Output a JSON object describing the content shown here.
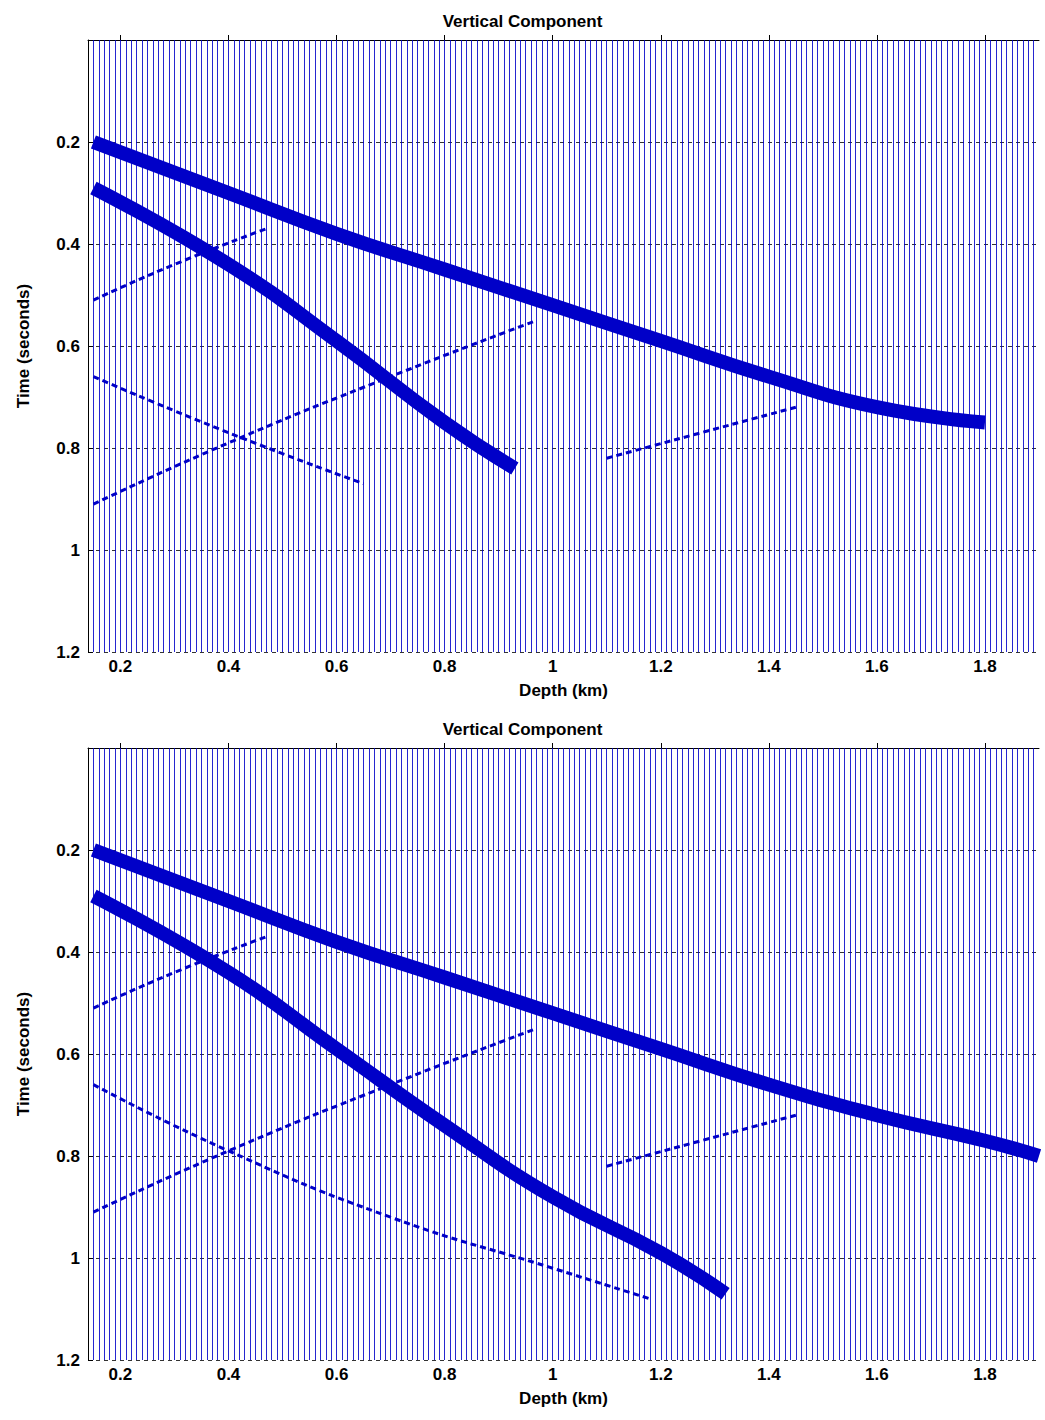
{
  "chart_data": [
    {
      "type": "line",
      "title": "Vertical Component",
      "x_label": "Depth (km)",
      "y_label": "Time (seconds)",
      "xlim": [
        0.14,
        1.9
      ],
      "xticks": [
        0.2,
        0.4,
        0.6,
        0.8,
        1,
        1.2,
        1.4,
        1.6,
        1.8
      ],
      "ylim": [
        0,
        1.2
      ],
      "yticks": [
        0.2,
        0.4,
        0.6,
        0.8,
        1,
        1.2
      ],
      "grid": true,
      "traces": [
        0.15,
        0.16,
        0.17,
        0.18,
        0.19,
        0.2,
        0.21,
        0.22,
        0.23,
        0.24,
        0.25,
        0.26,
        0.27,
        0.28,
        0.29,
        0.3,
        0.31,
        0.32,
        0.33,
        0.34,
        0.35,
        0.36,
        0.37,
        0.38,
        0.39,
        0.4,
        0.41,
        0.42,
        0.43,
        0.44,
        0.45,
        0.46,
        0.47,
        0.48,
        0.49,
        0.5,
        0.51,
        0.52,
        0.53,
        0.54,
        0.55,
        0.56,
        0.57,
        0.58,
        0.59,
        0.6,
        0.61,
        0.62,
        0.63,
        0.64,
        0.65,
        0.66,
        0.67,
        0.68,
        0.69,
        0.7,
        0.71,
        0.72,
        0.73,
        0.74,
        0.75,
        0.76,
        0.77,
        0.78,
        0.79,
        0.8,
        0.81,
        0.82,
        0.83,
        0.84,
        0.85,
        0.86,
        0.87,
        0.88,
        0.89,
        0.9,
        0.91,
        0.92,
        0.93,
        0.94,
        0.95,
        0.96,
        0.97,
        0.98,
        0.99,
        1,
        1.01,
        1.02,
        1.03,
        1.04,
        1.05,
        1.06,
        1.07,
        1.08,
        1.09,
        1.1,
        1.11,
        1.12,
        1.13,
        1.14,
        1.15,
        1.16,
        1.17,
        1.18,
        1.19,
        1.2,
        1.21,
        1.22,
        1.23,
        1.24,
        1.25,
        1.26,
        1.27,
        1.28,
        1.29,
        1.3,
        1.31,
        1.32,
        1.33,
        1.34,
        1.35,
        1.36,
        1.37,
        1.38,
        1.39,
        1.4,
        1.41,
        1.42,
        1.43,
        1.44,
        1.45,
        1.46,
        1.47,
        1.48,
        1.49,
        1.5,
        1.51,
        1.52,
        1.53,
        1.54,
        1.55,
        1.56,
        1.57,
        1.58,
        1.59,
        1.6,
        1.61,
        1.62,
        1.63,
        1.64,
        1.65,
        1.66,
        1.67,
        1.68,
        1.69,
        1.7,
        1.71,
        1.72,
        1.73,
        1.74,
        1.75,
        1.76,
        1.77,
        1.78,
        1.79,
        1.8,
        1.81,
        1.82,
        1.83,
        1.84,
        1.85,
        1.86,
        1.87,
        1.88,
        1.89
      ],
      "series": [
        {
          "color": "#0000c8",
          "line_style": "solid",
          "x": [
            0.15,
            0.4,
            0.6,
            0.8,
            1,
            1.2,
            1.4,
            1.6,
            1.8
          ],
          "values": [
            0.2,
            0.3,
            0.38,
            0.45,
            0.52,
            0.59,
            0.66,
            0.72,
            0.75
          ]
        },
        {
          "color": "#0000c8",
          "line_style": "solid",
          "x": [
            0.15,
            0.4,
            0.6,
            0.8,
            0.93
          ],
          "values": [
            0.29,
            0.44,
            0.59,
            0.75,
            0.84
          ]
        },
        {
          "color": "#0000c8",
          "line_style": "dashed",
          "x": [
            0.15,
            0.3,
            0.47
          ],
          "values": [
            0.51,
            0.44,
            0.37
          ]
        },
        {
          "color": "#0000c8",
          "line_style": "dashed",
          "x": [
            0.15,
            0.4,
            0.7,
            0.97
          ],
          "values": [
            0.91,
            0.79,
            0.66,
            0.55
          ]
        },
        {
          "color": "#0000c8",
          "line_style": "dashed",
          "x": [
            0.15,
            0.4,
            0.65
          ],
          "values": [
            0.66,
            0.77,
            0.87
          ]
        },
        {
          "color": "#0000c8",
          "line_style": "dashed",
          "x": [
            1.1,
            1.45
          ],
          "values": [
            0.82,
            0.72
          ]
        }
      ]
    },
    {
      "type": "line",
      "title": "Vertical Component",
      "x_label": "Depth (km)",
      "y_label": "Time (seconds)",
      "xlim": [
        0.14,
        1.9
      ],
      "xticks": [
        0.2,
        0.4,
        0.6,
        0.8,
        1,
        1.2,
        1.4,
        1.6,
        1.8
      ],
      "ylim": [
        0,
        1.2
      ],
      "yticks": [
        0.2,
        0.4,
        0.6,
        0.8,
        1,
        1.2
      ],
      "grid": true,
      "traces": [
        0.15,
        0.16,
        0.17,
        0.18,
        0.19,
        0.2,
        0.21,
        0.22,
        0.23,
        0.24,
        0.25,
        0.26,
        0.27,
        0.28,
        0.29,
        0.3,
        0.31,
        0.32,
        0.33,
        0.34,
        0.35,
        0.36,
        0.37,
        0.38,
        0.39,
        0.4,
        0.41,
        0.42,
        0.43,
        0.44,
        0.45,
        0.46,
        0.47,
        0.48,
        0.49,
        0.5,
        0.51,
        0.52,
        0.53,
        0.54,
        0.55,
        0.56,
        0.57,
        0.58,
        0.59,
        0.6,
        0.61,
        0.62,
        0.63,
        0.64,
        0.65,
        0.66,
        0.67,
        0.68,
        0.69,
        0.7,
        0.71,
        0.72,
        0.73,
        0.74,
        0.75,
        0.76,
        0.77,
        0.78,
        0.79,
        0.8,
        0.81,
        0.82,
        0.83,
        0.84,
        0.85,
        0.86,
        0.87,
        0.88,
        0.89,
        0.9,
        0.91,
        0.92,
        0.93,
        0.94,
        0.95,
        0.96,
        0.97,
        0.98,
        0.99,
        1,
        1.01,
        1.02,
        1.03,
        1.04,
        1.05,
        1.06,
        1.07,
        1.08,
        1.09,
        1.1,
        1.11,
        1.12,
        1.13,
        1.14,
        1.15,
        1.16,
        1.17,
        1.18,
        1.19,
        1.2,
        1.21,
        1.22,
        1.23,
        1.24,
        1.25,
        1.26,
        1.27,
        1.28,
        1.29,
        1.3,
        1.31,
        1.32,
        1.33,
        1.34,
        1.35,
        1.36,
        1.37,
        1.38,
        1.39,
        1.4,
        1.41,
        1.42,
        1.43,
        1.44,
        1.45,
        1.46,
        1.47,
        1.48,
        1.49,
        1.5,
        1.51,
        1.52,
        1.53,
        1.54,
        1.55,
        1.56,
        1.57,
        1.58,
        1.59,
        1.6,
        1.61,
        1.62,
        1.63,
        1.64,
        1.65,
        1.66,
        1.67,
        1.68,
        1.69,
        1.7,
        1.71,
        1.72,
        1.73,
        1.74,
        1.75,
        1.76,
        1.77,
        1.78,
        1.79,
        1.8,
        1.81,
        1.82,
        1.83,
        1.84,
        1.85,
        1.86,
        1.87,
        1.88,
        1.89
      ],
      "series": [
        {
          "color": "#0000c8",
          "line_style": "solid",
          "x": [
            0.15,
            0.4,
            0.6,
            0.8,
            1,
            1.2,
            1.4,
            1.6,
            1.8,
            1.9
          ],
          "values": [
            0.2,
            0.3,
            0.38,
            0.45,
            0.52,
            0.59,
            0.66,
            0.72,
            0.77,
            0.8
          ]
        },
        {
          "color": "#0000c8",
          "line_style": "solid",
          "x": [
            0.15,
            0.4,
            0.6,
            0.8,
            1,
            1.2,
            1.32
          ],
          "values": [
            0.29,
            0.44,
            0.59,
            0.74,
            0.88,
            0.99,
            1.07
          ]
        },
        {
          "color": "#0000c8",
          "line_style": "dashed",
          "x": [
            0.15,
            0.3,
            0.47
          ],
          "values": [
            0.51,
            0.44,
            0.37
          ]
        },
        {
          "color": "#0000c8",
          "line_style": "dashed",
          "x": [
            0.15,
            0.4,
            0.7,
            0.97
          ],
          "values": [
            0.91,
            0.79,
            0.66,
            0.55
          ]
        },
        {
          "color": "#0000c8",
          "line_style": "dashed",
          "x": [
            0.15,
            0.4,
            0.7,
            1,
            1.18
          ],
          "values": [
            0.66,
            0.79,
            0.92,
            1.02,
            1.08
          ]
        },
        {
          "color": "#0000c8",
          "line_style": "dashed",
          "x": [
            1.1,
            1.45
          ],
          "values": [
            0.82,
            0.72
          ]
        }
      ]
    }
  ]
}
